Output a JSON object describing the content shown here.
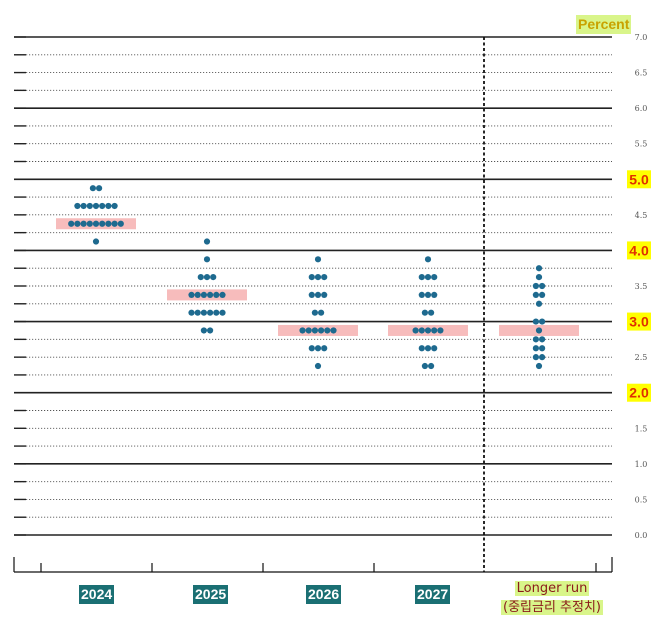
{
  "unit_label": "Percent",
  "categories": [
    "2024",
    "2025",
    "2026",
    "2027"
  ],
  "longer_run": {
    "line1": "Longer run",
    "line2": "(중립금리 추정치)"
  },
  "chart_data": {
    "type": "scatter",
    "title": "",
    "ylabel": "Percent",
    "ylim": [
      0,
      7
    ],
    "yticks": [
      "0.0",
      "0.5",
      "1.0",
      "1.5",
      "2.0",
      "2.5",
      "3.0",
      "3.5",
      "4.0",
      "4.5",
      "5.0",
      "5.5",
      "6.0",
      "6.5",
      "7.0"
    ],
    "highlighted_ticks": [
      "5.0",
      "4.0",
      "3.0",
      "2.0"
    ],
    "categories": [
      "2024",
      "2025",
      "2026",
      "2027",
      "Longer run"
    ],
    "median_markers": [
      4.375,
      3.375,
      2.875,
      2.875,
      2.875
    ],
    "dots": [
      {
        "category": "2024",
        "points": [
          {
            "y": 4.875,
            "n": 2
          },
          {
            "y": 4.625,
            "n": 7
          },
          {
            "y": 4.375,
            "n": 9
          },
          {
            "y": 4.125,
            "n": 1
          }
        ]
      },
      {
        "category": "2025",
        "points": [
          {
            "y": 4.125,
            "n": 1
          },
          {
            "y": 3.875,
            "n": 1
          },
          {
            "y": 3.625,
            "n": 3
          },
          {
            "y": 3.375,
            "n": 6
          },
          {
            "y": 3.125,
            "n": 6
          },
          {
            "y": 2.875,
            "n": 2
          }
        ]
      },
      {
        "category": "2026",
        "points": [
          {
            "y": 3.875,
            "n": 1
          },
          {
            "y": 3.625,
            "n": 3
          },
          {
            "y": 3.375,
            "n": 3
          },
          {
            "y": 3.125,
            "n": 2
          },
          {
            "y": 2.875,
            "n": 6
          },
          {
            "y": 2.625,
            "n": 3
          },
          {
            "y": 2.375,
            "n": 1
          }
        ]
      },
      {
        "category": "2027",
        "points": [
          {
            "y": 3.875,
            "n": 1
          },
          {
            "y": 3.625,
            "n": 3
          },
          {
            "y": 3.375,
            "n": 3
          },
          {
            "y": 3.125,
            "n": 2
          },
          {
            "y": 2.875,
            "n": 5
          },
          {
            "y": 2.625,
            "n": 3
          },
          {
            "y": 2.375,
            "n": 2
          }
        ]
      },
      {
        "category": "Longer run",
        "points": [
          {
            "y": 3.75,
            "n": 1
          },
          {
            "y": 3.625,
            "n": 1
          },
          {
            "y": 3.5,
            "n": 2
          },
          {
            "y": 3.375,
            "n": 2
          },
          {
            "y": 3.25,
            "n": 1
          },
          {
            "y": 3.0,
            "n": 2
          },
          {
            "y": 2.875,
            "n": 1
          },
          {
            "y": 2.75,
            "n": 2
          },
          {
            "y": 2.625,
            "n": 2
          },
          {
            "y": 2.5,
            "n": 2
          },
          {
            "y": 2.375,
            "n": 1
          }
        ]
      }
    ],
    "colors": {
      "dot": "#1e6a8f",
      "median": "#f7bcbc",
      "highlight_bg": "#ffff00",
      "highlight_text": "#e03000"
    }
  }
}
